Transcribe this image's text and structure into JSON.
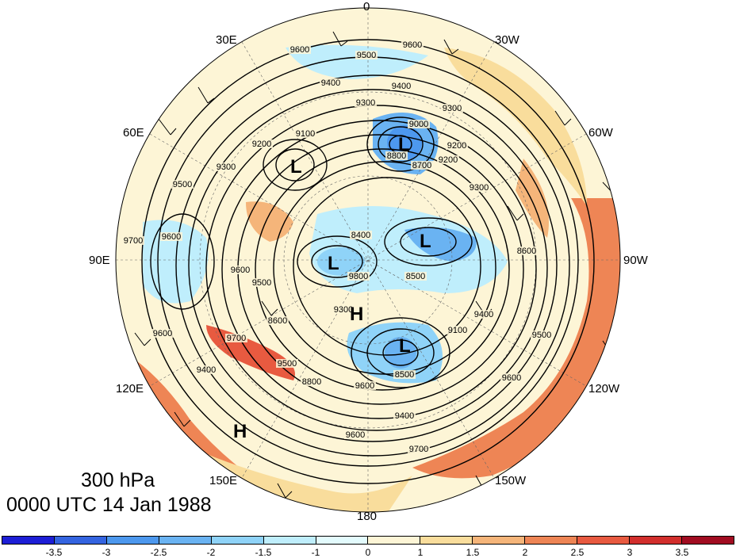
{
  "caption": {
    "level": "300 hPa",
    "time": "0000 UTC 14 Jan 1988"
  },
  "longitude_labels": {
    "lon0": "0",
    "lon30e": "30E",
    "lon30w": "30W",
    "lon60e": "60E",
    "lon60w": "60W",
    "lon90e": "90E",
    "lon90w": "90W",
    "lon120e": "120E",
    "lon120w": "120W",
    "lon150e": "150E",
    "lon150w": "150W",
    "lon180": "180"
  },
  "pressure_centers": [
    {
      "type": "L",
      "region": "east-europe"
    },
    {
      "type": "L",
      "region": "greenland-north"
    },
    {
      "type": "L",
      "region": "central-arctic"
    },
    {
      "type": "L",
      "region": "canadian-arctic"
    },
    {
      "type": "L",
      "region": "alaska-north"
    },
    {
      "type": "H",
      "region": "beaufort"
    },
    {
      "type": "H",
      "region": "north-pacific"
    }
  ],
  "contour_labels": [
    "9600",
    "9500",
    "9600",
    "9400",
    "9400",
    "9300",
    "9200",
    "9100",
    "9000",
    "8700",
    "8800",
    "9300",
    "9200",
    "9500",
    "9600",
    "9700",
    "9600",
    "9400",
    "9500",
    "9600",
    "9300",
    "8400",
    "9800",
    "9300",
    "8500",
    "9400",
    "9100",
    "8600",
    "9500",
    "9200",
    "8600",
    "9600",
    "8500",
    "9400",
    "9600",
    "9700",
    "9600",
    "9700",
    "9500",
    "8800",
    "9300"
  ],
  "colorbar": {
    "colors": [
      "#1d1ed6",
      "#3464e0",
      "#4d98ee",
      "#6ab3f2",
      "#8fd3f8",
      "#bfeefc",
      "#e3fbfd",
      "#fdf5d6",
      "#f9dd9c",
      "#f5b57a",
      "#ee8555",
      "#e85a40",
      "#d22e2c",
      "#a10c21"
    ],
    "ticks": [
      "-3.5",
      "-3",
      "-2.5",
      "-2",
      "-1.5",
      "-1",
      "0",
      "1",
      "1.5",
      "2",
      "2.5",
      "3",
      "3.5"
    ]
  }
}
